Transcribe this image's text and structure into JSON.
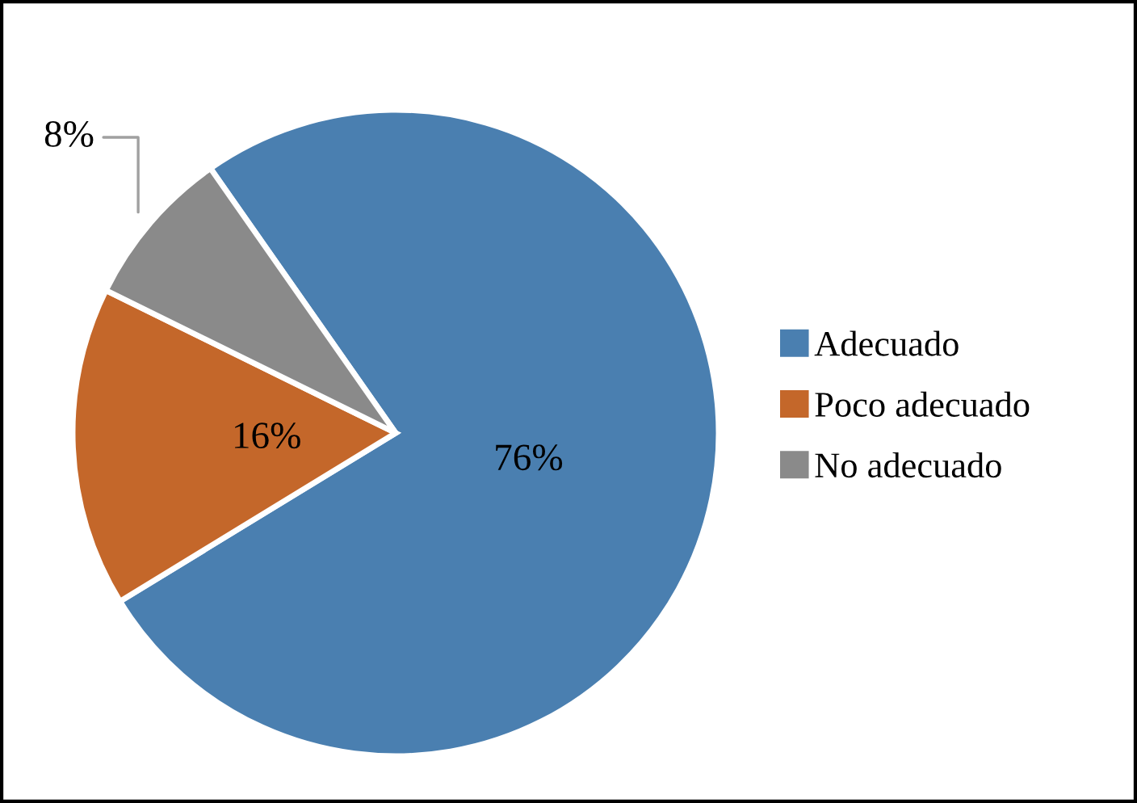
{
  "chart_data": {
    "type": "pie",
    "categories": [
      "Adecuado",
      "Poco adecuado",
      "No adecuado"
    ],
    "values": [
      76,
      16,
      8
    ],
    "value_labels": [
      "76%",
      "16%",
      "8%"
    ],
    "colors": [
      "#4a7fb0",
      "#c4672a",
      "#8a8a8a"
    ],
    "legend": "right"
  }
}
